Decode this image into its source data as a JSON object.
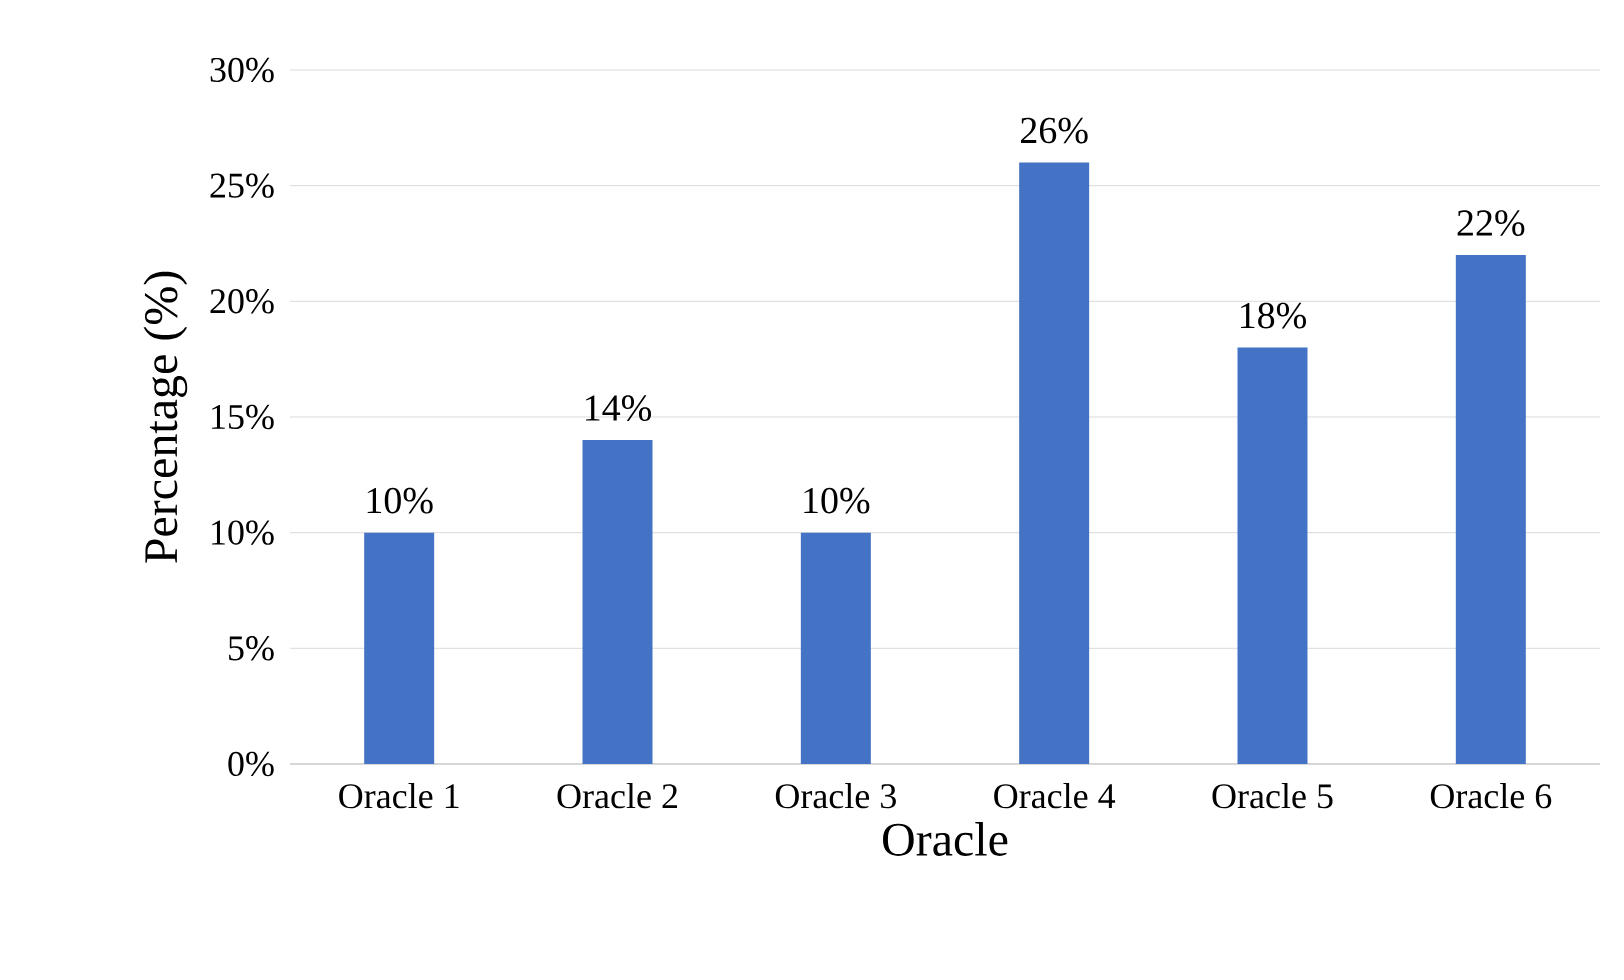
{
  "chart_data": {
    "type": "bar",
    "xlabel": "Oracle",
    "ylabel": "Percentage (%)",
    "categories": [
      "Oracle 1",
      "Oracle 2",
      "Oracle 3",
      "Oracle 4",
      "Oracle 5",
      "Oracle 6"
    ],
    "values": [
      10,
      14,
      10,
      26,
      18,
      22
    ],
    "value_labels": [
      "10%",
      "14%",
      "10%",
      "26%",
      "18%",
      "22%"
    ],
    "color": "#4472c4",
    "ylim": [
      0,
      30
    ],
    "yticks": [
      {
        "value": 0,
        "label": "0%"
      },
      {
        "value": 5,
        "label": "5%"
      },
      {
        "value": 10,
        "label": "10%"
      },
      {
        "value": 15,
        "label": "15%"
      },
      {
        "value": 20,
        "label": "20%"
      },
      {
        "value": 25,
        "label": "25%"
      },
      {
        "value": 30,
        "label": "30%"
      }
    ],
    "grid": "y"
  }
}
